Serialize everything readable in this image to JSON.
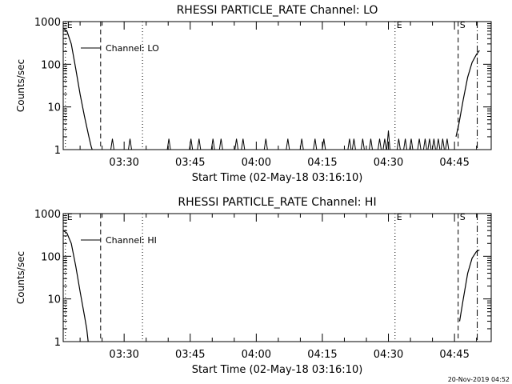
{
  "footer": {
    "timestamp": "20-Nov-2019 04:52"
  },
  "chart_data": [
    {
      "type": "line",
      "title": "RHESSI PARTICLE_RATE Channel: LO",
      "xlabel": "Start Time (02-May-18 03:16:10)",
      "ylabel": "Counts/sec",
      "yscale": "log",
      "ylim": [
        1,
        1000
      ],
      "xlim": [
        "03:16:10",
        "04:53:20"
      ],
      "x_ticks": [
        "03:30",
        "03:45",
        "04:00",
        "04:15",
        "04:30",
        "04:45"
      ],
      "y_ticks": [
        "1",
        "10",
        "100",
        "1000"
      ],
      "grid": false,
      "legend": {
        "position": "top-left",
        "entries": [
          "Channel: LO"
        ]
      },
      "markers": [
        {
          "label": "E",
          "time": "03:16:40",
          "style": "dotted"
        },
        {
          "label": "",
          "time": "03:24:40",
          "style": "dashed"
        },
        {
          "label": "",
          "time": "03:34:10",
          "style": "dotted"
        },
        {
          "label": "E",
          "time": "04:31:30",
          "style": "dotted"
        },
        {
          "label": "S",
          "time": "04:45:50",
          "style": "dashed"
        },
        {
          "label": "",
          "time": "04:50:10",
          "style": "dashdot"
        }
      ],
      "series": [
        {
          "name": "Channel: LO",
          "x": [
            "03:16:10",
            "03:17:00",
            "03:18:00",
            "03:19:00",
            "03:20:00",
            "03:21:00",
            "03:22:00",
            "03:22:30",
            "03:22:45"
          ],
          "y": [
            700,
            600,
            300,
            80,
            20,
            6,
            2,
            1.2,
            1
          ]
        }
      ],
      "spikes": {
        "times": [
          "03:27:20",
          "03:31:20",
          "03:40:10",
          "03:45:10",
          "03:47:00",
          "03:50:10",
          "03:52:00",
          "03:55:30",
          "03:57:00",
          "04:02:10",
          "04:07:10",
          "04:10:20",
          "04:13:20",
          "04:15:20",
          "04:21:10",
          "04:22:10",
          "04:24:10",
          "04:26:00",
          "04:28:00",
          "04:29:10",
          "04:30:00",
          "04:32:20",
          "04:33:50",
          "04:35:10",
          "04:37:00",
          "04:38:20",
          "04:39:20",
          "04:40:20",
          "04:41:20",
          "04:42:20",
          "04:43:20"
        ],
        "peaks": [
          1.8,
          1.8,
          1.8,
          1.8,
          1.8,
          1.8,
          1.8,
          1.8,
          1.8,
          1.8,
          1.8,
          1.8,
          1.8,
          1.8,
          1.8,
          1.8,
          1.8,
          1.8,
          1.8,
          1.8,
          2.8,
          1.8,
          1.8,
          1.8,
          1.8,
          1.8,
          1.8,
          1.8,
          1.8,
          1.8,
          1.8
        ]
      },
      "series_rise": {
        "x": [
          "04:45:20",
          "04:46:00",
          "04:47:00",
          "04:48:00",
          "04:49:00",
          "04:50:00",
          "04:50:40"
        ],
        "y": [
          2,
          4,
          15,
          50,
          110,
          170,
          210
        ]
      }
    },
    {
      "type": "line",
      "title": "RHESSI PARTICLE_RATE Channel: HI",
      "xlabel": "Start Time (02-May-18 03:16:10)",
      "ylabel": "Counts/sec",
      "yscale": "log",
      "ylim": [
        1,
        1000
      ],
      "xlim": [
        "03:16:10",
        "04:53:20"
      ],
      "x_ticks": [
        "03:30",
        "03:45",
        "04:00",
        "04:15",
        "04:30",
        "04:45"
      ],
      "y_ticks": [
        "1",
        "10",
        "100",
        "1000"
      ],
      "grid": false,
      "legend": {
        "position": "top-left",
        "entries": [
          "Channel: HI"
        ]
      },
      "markers": [
        {
          "label": "E",
          "time": "03:16:40",
          "style": "dotted"
        },
        {
          "label": "",
          "time": "03:24:40",
          "style": "dashed"
        },
        {
          "label": "",
          "time": "03:34:10",
          "style": "dotted"
        },
        {
          "label": "E",
          "time": "04:31:30",
          "style": "dotted"
        },
        {
          "label": "S",
          "time": "04:45:50",
          "style": "dashed"
        },
        {
          "label": "",
          "time": "04:50:10",
          "style": "dashdot"
        }
      ],
      "series": [
        {
          "name": "Channel: HI",
          "x": [
            "03:16:10",
            "03:17:00",
            "03:18:00",
            "03:19:00",
            "03:20:00",
            "03:21:00",
            "03:21:30",
            "03:21:50"
          ],
          "y": [
            400,
            350,
            200,
            60,
            15,
            4,
            2,
            1
          ]
        }
      ],
      "series_rise": {
        "x": [
          "04:46:10",
          "04:47:00",
          "04:48:00",
          "04:49:00",
          "04:50:00",
          "04:50:40"
        ],
        "y": [
          3,
          10,
          40,
          90,
          130,
          140
        ]
      }
    }
  ]
}
